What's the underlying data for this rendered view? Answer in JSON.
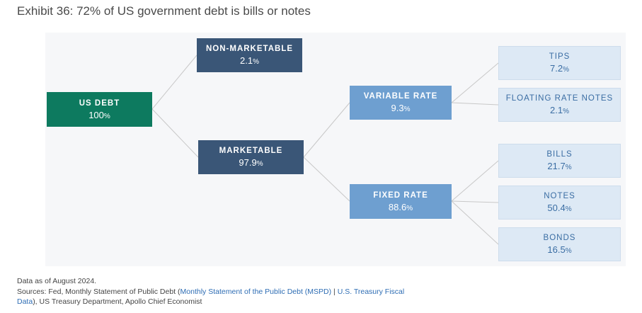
{
  "title": "Exhibit 36: 72% of US government debt is bills or notes",
  "nodes": {
    "us_debt": {
      "label": "US DEBT",
      "value": "100",
      "unit": "%"
    },
    "non_marketable": {
      "label": "NON-MARKETABLE",
      "value": "2.1",
      "unit": "%"
    },
    "marketable": {
      "label": "MARKETABLE",
      "value": "97.9",
      "unit": "%"
    },
    "variable_rate": {
      "label": "VARIABLE RATE",
      "value": "9.3",
      "unit": "%"
    },
    "fixed_rate": {
      "label": "FIXED RATE",
      "value": "88.6",
      "unit": "%"
    },
    "tips": {
      "label": "TIPS",
      "value": "7.2",
      "unit": "%"
    },
    "floating": {
      "label": "FLOATING RATE NOTES",
      "value": "2.1",
      "unit": "%"
    },
    "bills": {
      "label": "BILLS",
      "value": "21.7",
      "unit": "%"
    },
    "notes": {
      "label": "NOTES",
      "value": "50.4",
      "unit": "%"
    },
    "bonds": {
      "label": "BONDS",
      "value": "16.5",
      "unit": "%"
    }
  },
  "footer": {
    "line1": "Data as of August 2024.",
    "sources_prefix": "Sources: Fed, Monthly Statement of Public Debt (",
    "link1": "Monthly Statement of the Public Debt (MSPD)",
    "separator": " | ",
    "link2a": "U.S. Treasury Fiscal",
    "link2b": "Data",
    "sources_suffix": "), US Treasury Department, Apollo Chief Economist"
  },
  "colors": {
    "root": "#0d7a5f",
    "level1": "#3a5677",
    "level2": "#6e9fd0",
    "leaf": "#dde9f5",
    "connector": "#c8c8c8"
  }
}
